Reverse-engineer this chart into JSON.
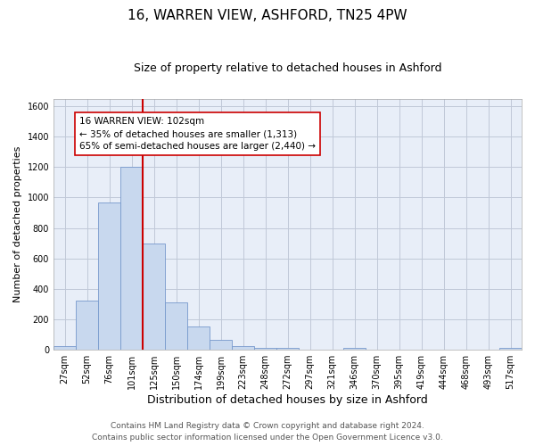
{
  "title1": "16, WARREN VIEW, ASHFORD, TN25 4PW",
  "title2": "Size of property relative to detached houses in Ashford",
  "xlabel": "Distribution of detached houses by size in Ashford",
  "ylabel": "Number of detached properties",
  "categories": [
    "27sqm",
    "52sqm",
    "76sqm",
    "101sqm",
    "125sqm",
    "150sqm",
    "174sqm",
    "199sqm",
    "223sqm",
    "248sqm",
    "272sqm",
    "297sqm",
    "321sqm",
    "346sqm",
    "370sqm",
    "395sqm",
    "419sqm",
    "444sqm",
    "468sqm",
    "493sqm",
    "517sqm"
  ],
  "values": [
    25,
    320,
    970,
    1200,
    700,
    310,
    155,
    65,
    25,
    15,
    13,
    0,
    0,
    10,
    0,
    0,
    0,
    0,
    0,
    0,
    10
  ],
  "bar_color": "#c8d8ee",
  "bar_edge_color": "#7799cc",
  "vline_color": "#cc0000",
  "annotation_text": "16 WARREN VIEW: 102sqm\n← 35% of detached houses are smaller (1,313)\n65% of semi-detached houses are larger (2,440) →",
  "annotation_box_color": "#ffffff",
  "annotation_box_edge_color": "#cc0000",
  "ylim": [
    0,
    1650
  ],
  "yticks": [
    0,
    200,
    400,
    600,
    800,
    1000,
    1200,
    1400,
    1600
  ],
  "footer1": "Contains HM Land Registry data © Crown copyright and database right 2024.",
  "footer2": "Contains public sector information licensed under the Open Government Licence v3.0.",
  "bg_color": "#ffffff",
  "plot_bg_color": "#e8eef8",
  "grid_color": "#c0c8d8",
  "title1_fontsize": 11,
  "title2_fontsize": 9,
  "xlabel_fontsize": 9,
  "ylabel_fontsize": 8,
  "tick_fontsize": 7,
  "annotation_fontsize": 7.5,
  "footer_fontsize": 6.5
}
